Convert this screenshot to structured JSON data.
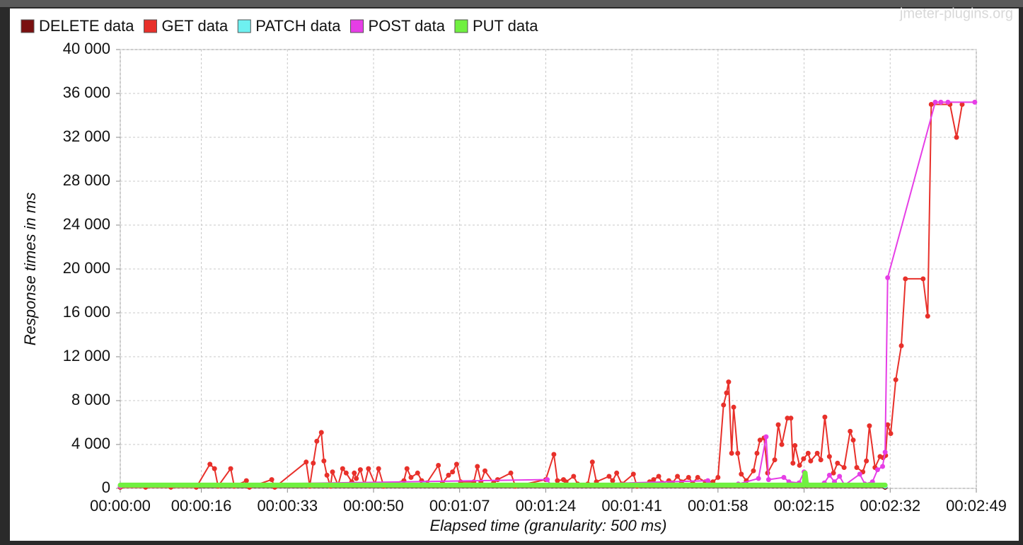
{
  "chart_data": {
    "type": "line",
    "watermark": "jmeter-plugins.org",
    "x_label": "Elapsed time (granularity: 500 ms)",
    "y_label": "Response times in ms",
    "legend": "top-left",
    "grid": true,
    "xlim": [
      0,
      169
    ],
    "xticks": [
      {
        "value": 0,
        "label": "00:00:00"
      },
      {
        "value": 16,
        "label": "00:00:16"
      },
      {
        "value": 33,
        "label": "00:00:33"
      },
      {
        "value": 50,
        "label": "00:00:50"
      },
      {
        "value": 67,
        "label": "00:01:07"
      },
      {
        "value": 84,
        "label": "00:01:24"
      },
      {
        "value": 101,
        "label": "00:01:41"
      },
      {
        "value": 118,
        "label": "00:01:58"
      },
      {
        "value": 135,
        "label": "00:02:15"
      },
      {
        "value": 152,
        "label": "00:02:32"
      },
      {
        "value": 169,
        "label": "00:02:49"
      }
    ],
    "ylim": [
      0,
      40000
    ],
    "yticks": [
      0,
      {
        "value": 4000,
        "label": "4 000"
      },
      {
        "value": 8000,
        "label": "8 000"
      },
      {
        "value": 12000,
        "label": "12 000"
      },
      {
        "value": 16000,
        "label": "16 000"
      },
      {
        "value": 20000,
        "label": "20 000"
      },
      {
        "value": 24000,
        "label": "24 000"
      },
      {
        "value": 28000,
        "label": "28 000"
      },
      {
        "value": 32000,
        "label": "32 000"
      },
      {
        "value": 36000,
        "label": "36 000"
      },
      {
        "value": 40000,
        "label": "40 000"
      }
    ],
    "series": [
      {
        "name": "DELETE data",
        "color": "#7a1010",
        "x": [
          0,
          151
        ],
        "values": [
          100,
          100
        ]
      },
      {
        "name": "GET data",
        "color": "#e8302a",
        "x": [
          0,
          5,
          10,
          15,
          17.7,
          18.6,
          19.3,
          21.8,
          22.5,
          24.9,
          25.5,
          29.9,
          30.5,
          36.7,
          37.4,
          38.1,
          38.8,
          39.7,
          40.2,
          40.8,
          41.5,
          41.9,
          43,
          43.9,
          44.6,
          45.7,
          46.2,
          46.6,
          47.4,
          48.2,
          49,
          50.3,
          51,
          52,
          56,
          56.6,
          57.4,
          58.7,
          59.5,
          60.5,
          62.8,
          63.6,
          64.8,
          65.6,
          66.4,
          67.2,
          69.8,
          70.5,
          71.2,
          72,
          73.7,
          74.5,
          77.1,
          78,
          84,
          85.6,
          86.3,
          87.5,
          88,
          89.5,
          90.3,
          92.3,
          93.2,
          94,
          96.5,
          97.2,
          98,
          99,
          101.3,
          102,
          104.5,
          105.3,
          106.3,
          107,
          108.3,
          109,
          110,
          110.8,
          112.2,
          113,
          114,
          115.5,
          117,
          118,
          119.1,
          119.7,
          120.1,
          120.7,
          121.1,
          121.9,
          122.6,
          123.6,
          125,
          125.7,
          126.3,
          127.1,
          127.8,
          129.2,
          129.9,
          130.6,
          131.7,
          132.4,
          132.8,
          133.2,
          134.1,
          134.9,
          135.8,
          136.3,
          137.6,
          138.3,
          139.1,
          140,
          140.8,
          141.6,
          142.9,
          144.1,
          144.7,
          145.4,
          146.6,
          147.3,
          147.9,
          149,
          150,
          150.6,
          151.1,
          151.5,
          152.1,
          153.1,
          154.2,
          155,
          158.5,
          159.4,
          160.1,
          163.8,
          165.1,
          166.2
        ],
        "values": [
          100,
          100,
          100,
          100,
          2200,
          1800,
          200,
          1800,
          200,
          700,
          100,
          800,
          100,
          2400,
          200,
          2300,
          4300,
          5100,
          2500,
          1200,
          200,
          1500,
          300,
          1800,
          1400,
          600,
          1400,
          900,
          1700,
          300,
          1800,
          400,
          1800,
          200,
          700,
          1800,
          1000,
          1400,
          700,
          500,
          2100,
          500,
          1200,
          1500,
          2200,
          600,
          600,
          2000,
          600,
          1600,
          500,
          800,
          1400,
          200,
          800,
          3100,
          700,
          800,
          600,
          1100,
          400,
          400,
          2400,
          600,
          1100,
          700,
          1400,
          400,
          1300,
          200,
          600,
          800,
          1100,
          500,
          700,
          500,
          1100,
          600,
          1000,
          500,
          1000,
          600,
          600,
          1000,
          7600,
          8700,
          9700,
          3200,
          7400,
          3200,
          1300,
          700,
          1600,
          3200,
          4400,
          4600,
          1400,
          2600,
          5800,
          4000,
          6400,
          6400,
          2300,
          3900,
          2100,
          2700,
          3200,
          2500,
          3200,
          2600,
          6500,
          2900,
          1400,
          2300,
          1900,
          5200,
          4400,
          1900,
          1500,
          2500,
          5700,
          1900,
          2900,
          2800,
          3000,
          5800,
          5000,
          9900,
          13000,
          19100,
          19100,
          15700,
          35000,
          35000,
          32000,
          35000
        ]
      },
      {
        "name": "PATCH data",
        "color": "#6ef0f0",
        "x": [
          0,
          27,
          60,
          151
        ],
        "values": [
          200,
          300,
          400,
          200
        ]
      },
      {
        "name": "POST data",
        "color": "#e63ee6",
        "x": [
          0,
          84.3,
          85,
          116,
          117,
          122,
          126,
          127.5,
          128,
          131,
          132,
          134,
          135,
          136,
          139,
          140,
          141,
          142,
          143,
          146,
          147,
          148.5,
          149.5,
          150.5,
          151,
          151.5,
          160.9,
          162,
          163.4,
          168.7
        ],
        "values": [
          200,
          800,
          300,
          700,
          300,
          400,
          900,
          4700,
          800,
          1000,
          600,
          500,
          1500,
          300,
          500,
          1200,
          600,
          1100,
          300,
          1300,
          400,
          600,
          1700,
          2000,
          3300,
          19200,
          35200,
          35200,
          35200,
          35200
        ]
      },
      {
        "name": "PUT data",
        "color": "#70f040",
        "x": [
          0,
          135,
          135.2,
          135.5,
          151
        ],
        "values": [
          300,
          300,
          1400,
          300,
          300
        ]
      }
    ]
  }
}
